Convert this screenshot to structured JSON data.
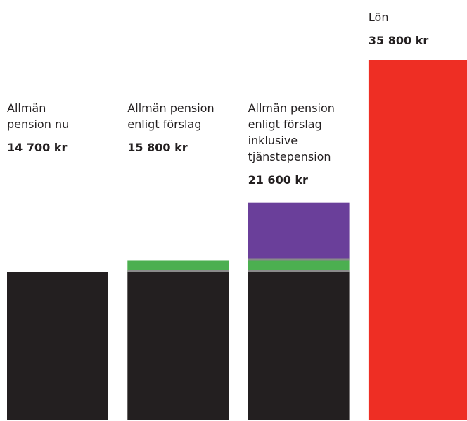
{
  "chart_data": {
    "type": "stacked_bar",
    "categories": [
      "Allmän\npension nu",
      "Allmän pension\nenligt förslag",
      "Allmän pension\nenligt förslag\ninklusive\ntjänstepension",
      "Lön"
    ],
    "series": [
      {
        "color": "#231f20",
        "values": [
          14700,
          14700,
          14700,
          null
        ]
      },
      {
        "color": "#4caf50",
        "values": [
          null,
          1100,
          1100,
          null
        ]
      },
      {
        "color": "#6a3f9a",
        "values": [
          null,
          null,
          5800,
          null
        ]
      },
      {
        "color": "#ee2e24",
        "values": [
          null,
          null,
          null,
          35800
        ]
      }
    ],
    "total_values": [
      14700,
      15800,
      21600,
      35800
    ],
    "total_labels": [
      "14 700 kr",
      "15 800 kr",
      "21 600 kr",
      "35 800 kr"
    ]
  }
}
